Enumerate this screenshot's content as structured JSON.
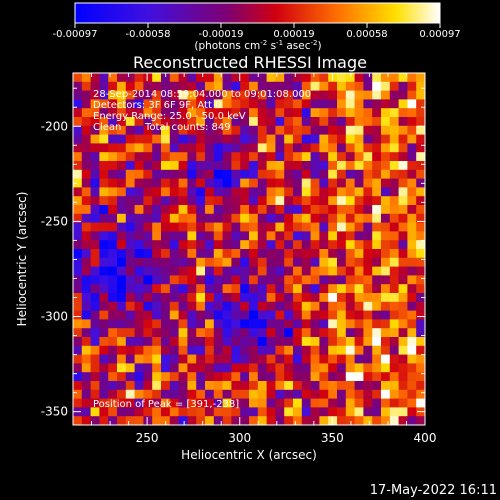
{
  "chart_data": {
    "type": "heatmap",
    "title": "Reconstructed RHESSI Image",
    "xlabel": "Heliocentric X (arcsec)",
    "ylabel": "Heliocentric Y (arcsec)",
    "xlim": [
      210,
      400
    ],
    "ylim": [
      -357,
      -172
    ],
    "xticks": [
      250,
      300,
      350,
      400
    ],
    "yticks": [
      -200,
      -250,
      -300,
      -350
    ],
    "colorbar": {
      "range": [
        -0.00097,
        0.00097
      ],
      "ticks": [
        "-0.00097",
        "-0.00058",
        "-0.00019",
        "0.00019",
        "0.00058",
        "0.00097"
      ],
      "unit_main": "(photons cm",
      "unit_exp1": "-2",
      "unit_mid1": " s",
      "unit_exp2": "-1",
      "unit_mid2": " asec",
      "unit_exp3": "-2",
      "unit_end": ")",
      "colors": [
        "#0000ff",
        "#5a00d8",
        "#8a0080",
        "#ff0000",
        "#ff8800",
        "#ffff00",
        "#ffffff"
      ]
    },
    "annotations": {
      "time_range": "28-Sep-2014 08:59:04.000 to 09:01:08.000",
      "detectors": "Detectors: 3F 6F 9F, Att 0",
      "energy_range": "Energy Range: 25.0 - 50.0 keV",
      "algorithm": "Clean",
      "total_counts": "Total counts: 849",
      "peak": "Position of Peak = [391,-238]"
    },
    "peak": [
      391,
      -238
    ],
    "grid": false,
    "grid_size": [
      40,
      40
    ],
    "approximate_field": "image is a noisy map of mostly positive flux (red/orange/yellow) with blue/purple patches at left and in a central-lower-left region; values below are estimated normalized intensities generated procedurally",
    "seed": 17
  },
  "footer_date": "17-May-2022 16:11"
}
